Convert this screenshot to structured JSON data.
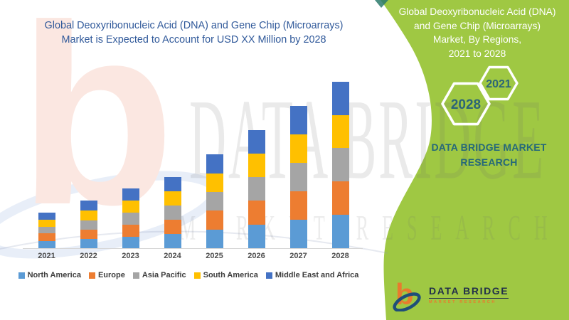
{
  "chart_title": {
    "line1": "Global Deoxyribonucleic Acid (DNA) and Gene Chip (Microarrays)",
    "line2": "Market is Expected to Account for USD XX Million by 2028"
  },
  "chart_data": {
    "type": "bar",
    "stacked": true,
    "title": "Global Deoxyribonucleic Acid (DNA) and Gene Chip (Microarrays) Market is Expected to Account for USD XX Million by 2028",
    "categories": [
      "2021",
      "2022",
      "2023",
      "2024",
      "2025",
      "2026",
      "2027",
      "2028"
    ],
    "series": [
      {
        "name": "North America",
        "color": "#5b9bd5",
        "values": [
          10,
          13,
          16,
          20,
          26,
          33,
          40,
          47
        ]
      },
      {
        "name": "Europe",
        "color": "#ed7d31",
        "values": [
          11,
          13,
          17,
          20,
          27,
          34,
          40,
          47
        ]
      },
      {
        "name": "Asia Pacific",
        "color": "#a5a5a5",
        "values": [
          9,
          13,
          17,
          20,
          26,
          33,
          40,
          47
        ]
      },
      {
        "name": "South America",
        "color": "#ffc000",
        "values": [
          10,
          14,
          17,
          20,
          26,
          33,
          40,
          46
        ]
      },
      {
        "name": "Middle East and Africa",
        "color": "#4472c4",
        "values": [
          10,
          14,
          17,
          20,
          27,
          33,
          40,
          47
        ]
      }
    ],
    "xlabel": "",
    "ylabel": "",
    "ylim": [
      0,
      260
    ],
    "y_axis_visible": false,
    "grid": false,
    "legend_position": "bottom",
    "value_note": "No numeric axis shown in source; values are relative index units estimated from bar heights (actual figure stated only as USD XX Million)."
  },
  "watermarks": {
    "brand": "DATA BRIDGE",
    "sub": "MARKET RESEARCH",
    "logo_glyph": "b"
  },
  "side_panel": {
    "bg_color": "#9fc843",
    "title_lines": [
      "Global Deoxyribonucleic Acid (DNA)",
      "and Gene Chip (Microarrays)",
      "Market, By Regions,",
      "2021 to 2028"
    ],
    "hexagons": [
      {
        "label": "2028"
      },
      {
        "label": "2021"
      }
    ],
    "brand_line1": "DATA BRIDGE MARKET",
    "brand_line2": "RESEARCH"
  },
  "footer_logo": {
    "glyph": "b",
    "name": "DATA BRIDGE",
    "tagline": "MARKET RESEARCH"
  },
  "brand_colors": {
    "green": "#9fc843",
    "green_dark_accent": "#2c7a6b",
    "title_blue": "#30599a",
    "teal_text": "#256879",
    "hex_number_teal": "#2c6577",
    "logo_orange": "#e87b2e",
    "logo_navy": "#22304a"
  }
}
